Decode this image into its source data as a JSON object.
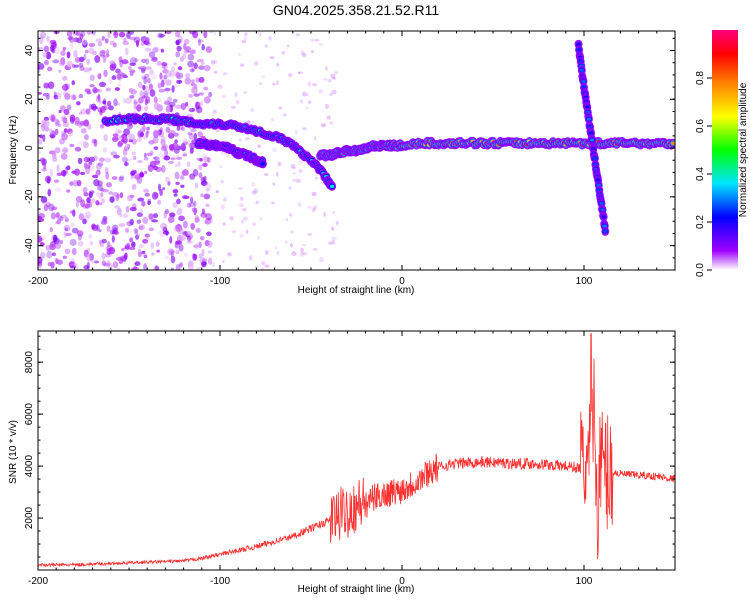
{
  "title": "GN04.2025.358.21.52.R11",
  "chart_data": [
    {
      "type": "heatmap",
      "title": "GN04.2025.358.21.52.R11",
      "xlabel": "Height of straight line (km)",
      "ylabel": "Frequency (Hz)",
      "xlim": [
        -200,
        150
      ],
      "ylim": [
        -50,
        48
      ],
      "xticks": [
        -200,
        -100,
        0,
        100
      ],
      "yticks": [
        -40,
        -20,
        0,
        20,
        40
      ],
      "colorbar": {
        "label": "Normalized spectral amplitude",
        "range": [
          0,
          1
        ],
        "ticks": [
          "0.0",
          "0.2",
          "0.4",
          "0.6",
          "0.8"
        ],
        "colors": [
          "#ffffff",
          "#a000ff",
          "#0000ff",
          "#00e5ff",
          "#00ff00",
          "#ffff00",
          "#ff8000",
          "#ff0000",
          "#ff0080"
        ]
      },
      "features": [
        {
          "name": "upper-branch",
          "x": [
            -163,
            -150,
            -140,
            -130,
            -120,
            -110,
            -100,
            -90,
            -80,
            -70,
            -62,
            -55,
            -48,
            -42,
            -38
          ],
          "y": [
            11,
            12,
            12,
            12,
            11,
            10,
            10,
            9,
            7,
            5,
            2,
            -2,
            -6,
            -12,
            -16
          ],
          "amplitude": 0.35
        },
        {
          "name": "lower-branch",
          "x": [
            -112,
            -105,
            -100,
            -95,
            -90,
            -85,
            -80,
            -76
          ],
          "y": [
            2,
            1,
            1,
            0,
            -2,
            -3,
            -5,
            -6
          ],
          "amplitude": 0.3
        },
        {
          "name": "central-ridge",
          "x": [
            -45,
            -40,
            -35,
            -30,
            -25,
            -20,
            -15,
            -10,
            -5,
            0,
            10,
            20,
            30,
            40,
            50,
            60,
            70,
            80,
            90,
            100,
            110,
            120,
            130,
            140,
            150
          ],
          "y": [
            -3,
            -3,
            -2,
            -1,
            -1,
            0,
            1,
            1,
            1,
            1,
            2,
            2,
            2,
            2,
            2,
            2,
            2,
            2,
            2,
            2,
            2,
            2,
            2,
            2,
            2
          ],
          "amplitude": 0.85
        },
        {
          "name": "steep-streak",
          "x": [
            97,
            100,
            103,
            106,
            109,
            112
          ],
          "y": [
            42,
            25,
            10,
            -5,
            -20,
            -35
          ],
          "amplitude": 0.25
        }
      ]
    },
    {
      "type": "line",
      "xlabel": "Height of straight line (km)",
      "ylabel": "SNR (10 * v/v)",
      "xlim": [
        -200,
        150
      ],
      "ylim": [
        0,
        9200
      ],
      "xticks": [
        -200,
        -100,
        0,
        100
      ],
      "yticks": [
        2000,
        4000,
        6000,
        8000
      ],
      "series": [
        {
          "name": "SNR",
          "color": "#ff3030",
          "x": [
            -200,
            -180,
            -160,
            -140,
            -120,
            -110,
            -100,
            -90,
            -80,
            -70,
            -60,
            -50,
            -40,
            -30,
            -25,
            -20,
            -15,
            -10,
            -5,
            0,
            5,
            10,
            15,
            20,
            25,
            30,
            40,
            50,
            60,
            70,
            80,
            90,
            95,
            100,
            103,
            105,
            107,
            110,
            113,
            116,
            120,
            130,
            140,
            150
          ],
          "values": [
            200,
            200,
            250,
            300,
            350,
            450,
            600,
            750,
            900,
            1100,
            1300,
            1600,
            1900,
            2300,
            2500,
            2600,
            2800,
            2900,
            3000,
            3100,
            3300,
            3500,
            3800,
            3950,
            4050,
            4100,
            4150,
            4150,
            4100,
            4100,
            4050,
            4000,
            3950,
            3900,
            4200,
            6500,
            3500,
            4000,
            3800,
            3750,
            3700,
            3650,
            3600,
            3500
          ]
        }
      ]
    }
  ]
}
